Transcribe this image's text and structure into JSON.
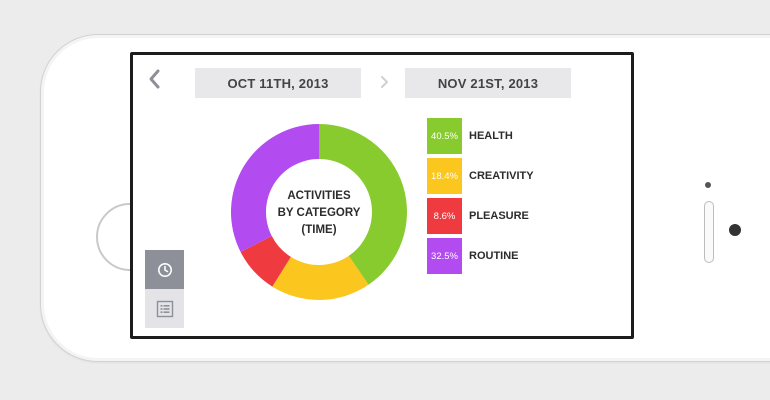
{
  "nav": {
    "start_date": "OCT 11TH, 2013",
    "end_date": "NOV 21ST, 2013"
  },
  "chart": {
    "center_label": {
      "line1": "ACTIVITIES",
      "line2": "BY CATEGORY",
      "line3": "(TIME)"
    }
  },
  "legend": [
    {
      "percent": "40.5%",
      "label": "HEALTH",
      "color": "#87cb2e"
    },
    {
      "percent": "18.4%",
      "label": "CREATIVITY",
      "color": "#fbc61e"
    },
    {
      "percent": "8.6%",
      "label": "PLEASURE",
      "color": "#ef3a3f"
    },
    {
      "percent": "32.5%",
      "label": "ROUTINE",
      "color": "#b24bf0"
    }
  ],
  "chart_data": {
    "type": "pie",
    "categories": [
      "HEALTH",
      "CREATIVITY",
      "PLEASURE",
      "ROUTINE"
    ],
    "values": [
      40.5,
      18.4,
      8.6,
      32.5
    ],
    "colors": [
      "#87cb2e",
      "#fbc61e",
      "#ef3a3f",
      "#b24bf0"
    ],
    "title": "ACTIVITIES BY CATEGORY (TIME)",
    "donut": true
  },
  "side_panel": {
    "items": [
      {
        "icon": "clock-icon",
        "active": true
      },
      {
        "icon": "list-icon",
        "active": false
      }
    ]
  }
}
